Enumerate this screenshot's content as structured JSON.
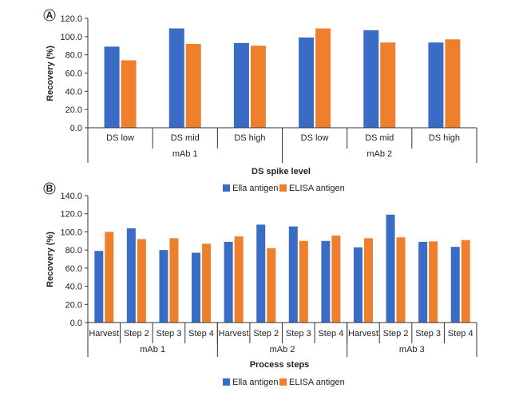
{
  "legend": {
    "items": [
      "Ella antigen",
      "ELISA antigen"
    ]
  },
  "colors": {
    "ella": "#3A6CC5",
    "elisa": "#EE7F2D"
  },
  "chart_data": [
    {
      "type": "bar",
      "panel_label": "A",
      "ylabel": "Recovery (%)",
      "xlabel": "DS spike level",
      "ylim": [
        0,
        120
      ],
      "yticks": [
        "0.0",
        "20.0",
        "40.0",
        "60.0",
        "80.0",
        "100.0",
        "120.0"
      ],
      "groups": [
        "mAb 1",
        "mAb 2"
      ],
      "categories": [
        "DS low",
        "DS mid",
        "DS high",
        "DS low",
        "DS mid",
        "DS high"
      ],
      "series": [
        {
          "name": "Ella antigen",
          "values": [
            89,
            109,
            93,
            99,
            107,
            93.5
          ]
        },
        {
          "name": "ELISA antigen",
          "values": [
            74,
            92,
            90,
            109,
            93.5,
            97
          ]
        }
      ],
      "legend_position": "bottom-center"
    },
    {
      "type": "bar",
      "panel_label": "B",
      "ylabel": "Recovery (%)",
      "xlabel": "Process steps",
      "ylim": [
        0,
        140
      ],
      "yticks": [
        "0.0",
        "20.0",
        "40.0",
        "60.0",
        "80.0",
        "100.0",
        "120.0",
        "140.0"
      ],
      "groups": [
        "mAb 1",
        "mAb 2",
        "mAb 3"
      ],
      "categories": [
        "Harvest",
        "Step 2",
        "Step 3",
        "Step 4",
        "Harvest",
        "Step 2",
        "Step 3",
        "Step 4",
        "Harvest",
        "Step 2",
        "Step 3",
        "Step 4"
      ],
      "series": [
        {
          "name": "Ella antigen",
          "values": [
            79,
            104,
            80,
            77,
            89,
            108,
            106,
            90,
            83,
            119,
            89,
            83.5
          ]
        },
        {
          "name": "ELISA antigen",
          "values": [
            100,
            92,
            93,
            87,
            95,
            82,
            90,
            96,
            93,
            94,
            89.5,
            91
          ]
        }
      ],
      "legend_position": "bottom-center"
    }
  ]
}
